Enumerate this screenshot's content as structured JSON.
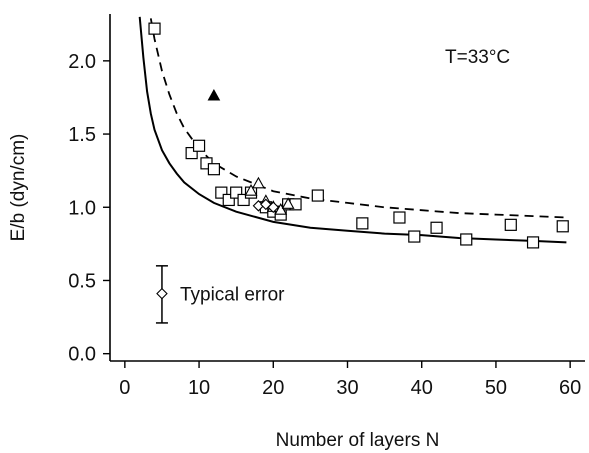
{
  "chart_data": {
    "type": "scatter",
    "title": "",
    "xlabel": "Number of layers N",
    "ylabel": "E/b (dyn/cm)",
    "xlim": [
      -2,
      62
    ],
    "ylim": [
      -0.05,
      2.32
    ],
    "xticks": [
      "0",
      "10",
      "20",
      "30",
      "40",
      "50",
      "60"
    ],
    "xtick_values": [
      0,
      10,
      20,
      30,
      40,
      50,
      60
    ],
    "yticks": [
      "0.0",
      "0.5",
      "1.0",
      "1.5",
      "2.0"
    ],
    "ytick_values": [
      0.0,
      0.5,
      1.0,
      1.5,
      2.0
    ],
    "grid": false,
    "annotation": "T=33°C",
    "series": [
      {
        "marker": "open-square",
        "points": [
          [
            4,
            2.22
          ],
          [
            9,
            1.37
          ],
          [
            10,
            1.42
          ],
          [
            11,
            1.3
          ],
          [
            12,
            1.26
          ],
          [
            13,
            1.1
          ],
          [
            14,
            1.05
          ],
          [
            15,
            1.1
          ],
          [
            16,
            1.05
          ],
          [
            17,
            1.1
          ],
          [
            19,
            1.0
          ],
          [
            20,
            0.97
          ],
          [
            21,
            0.95
          ],
          [
            22,
            1.02
          ],
          [
            23,
            1.02
          ],
          [
            26,
            1.08
          ],
          [
            32,
            0.89
          ],
          [
            37,
            0.93
          ],
          [
            39,
            0.8
          ],
          [
            42,
            0.86
          ],
          [
            46,
            0.78
          ],
          [
            52,
            0.88
          ],
          [
            55,
            0.76
          ],
          [
            59,
            0.87
          ]
        ]
      },
      {
        "marker": "open-triangle",
        "points": [
          [
            17,
            1.11
          ],
          [
            18,
            1.16
          ],
          [
            19,
            1.04
          ],
          [
            20,
            1.0
          ],
          [
            21,
            0.98
          ],
          [
            22,
            1.02
          ]
        ]
      },
      {
        "marker": "open-diamond",
        "points": [
          [
            18,
            1.01
          ],
          [
            19,
            1.02
          ],
          [
            20,
            1.0
          ]
        ]
      },
      {
        "marker": "filled-triangle",
        "points": [
          [
            12,
            1.76
          ]
        ]
      }
    ],
    "curves": [
      {
        "style": "solid",
        "points": [
          [
            2.0,
            2.3
          ],
          [
            2.5,
            2.02
          ],
          [
            3.0,
            1.79
          ],
          [
            3.5,
            1.64
          ],
          [
            4.0,
            1.53
          ],
          [
            5.0,
            1.39
          ],
          [
            6.0,
            1.3
          ],
          [
            7.0,
            1.23
          ],
          [
            8.0,
            1.17
          ],
          [
            10.0,
            1.09
          ],
          [
            12.0,
            1.03
          ],
          [
            15.0,
            0.97
          ],
          [
            20.0,
            0.9
          ],
          [
            25.0,
            0.86
          ],
          [
            30.0,
            0.84
          ],
          [
            35.0,
            0.82
          ],
          [
            40.0,
            0.81
          ],
          [
            45.0,
            0.79
          ],
          [
            50.0,
            0.78
          ],
          [
            55.0,
            0.77
          ],
          [
            59.5,
            0.76
          ]
        ]
      },
      {
        "style": "dashed",
        "points": [
          [
            3.5,
            2.29
          ],
          [
            4.0,
            2.15
          ],
          [
            5.0,
            1.93
          ],
          [
            6.0,
            1.77
          ],
          [
            7.0,
            1.64
          ],
          [
            8.0,
            1.54
          ],
          [
            10.0,
            1.4
          ],
          [
            12.0,
            1.3
          ],
          [
            15.0,
            1.21
          ],
          [
            20.0,
            1.11
          ],
          [
            25.0,
            1.06
          ],
          [
            30.0,
            1.03
          ],
          [
            35.0,
            1.0
          ],
          [
            40.0,
            0.98
          ],
          [
            45.0,
            0.96
          ],
          [
            50.0,
            0.95
          ],
          [
            55.0,
            0.94
          ],
          [
            59.5,
            0.93
          ]
        ]
      }
    ],
    "error_legend": {
      "label": "Typical error",
      "x": 5,
      "y": 0.41,
      "ylow": 0.21,
      "yhigh": 0.6
    }
  }
}
